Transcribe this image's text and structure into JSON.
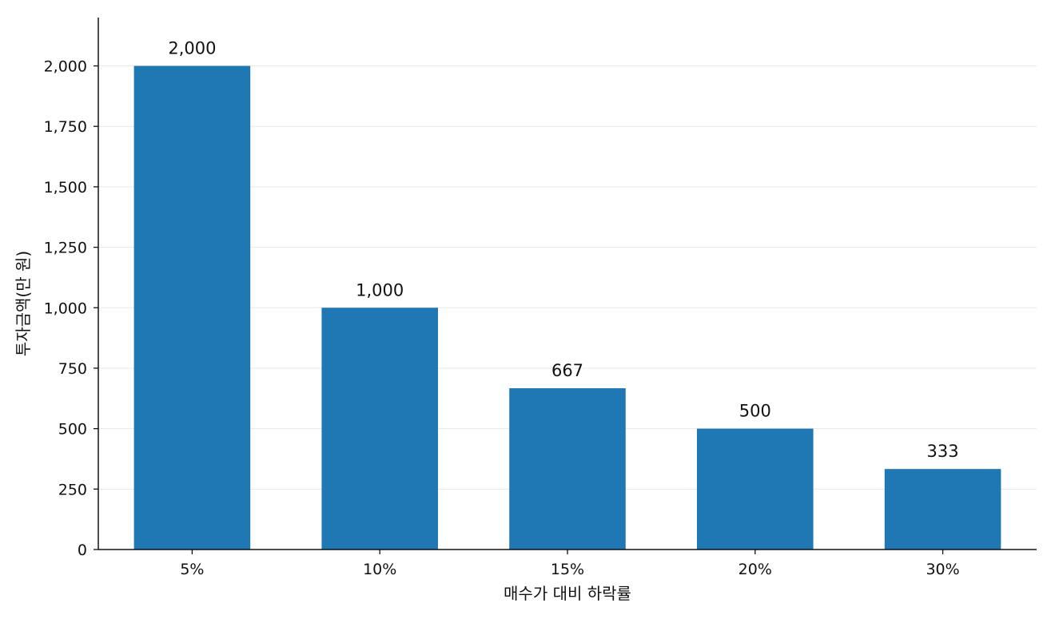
{
  "chart_data": {
    "type": "bar",
    "title": "",
    "xlabel": "매수가 대비 하락률",
    "ylabel": "투자금액(만 원)",
    "categories": [
      "5%",
      "10%",
      "15%",
      "20%",
      "30%"
    ],
    "values": [
      2000,
      1000,
      667,
      500,
      333
    ],
    "value_labels": [
      "2,000",
      "1,000",
      "667",
      "500",
      "333"
    ],
    "ylim": [
      0,
      2200
    ],
    "yticks": [
      0,
      250,
      500,
      750,
      1000,
      1250,
      1500,
      1750,
      2000
    ],
    "ytick_labels": [
      "0",
      "250",
      "500",
      "750",
      "1,000",
      "1,250",
      "1,500",
      "1,750",
      "2,000"
    ],
    "grid": "horizontal",
    "legend": "none",
    "bar_color": "#1f77b4",
    "grid_color": "#e8e8e8",
    "axis_color": "#111111"
  }
}
